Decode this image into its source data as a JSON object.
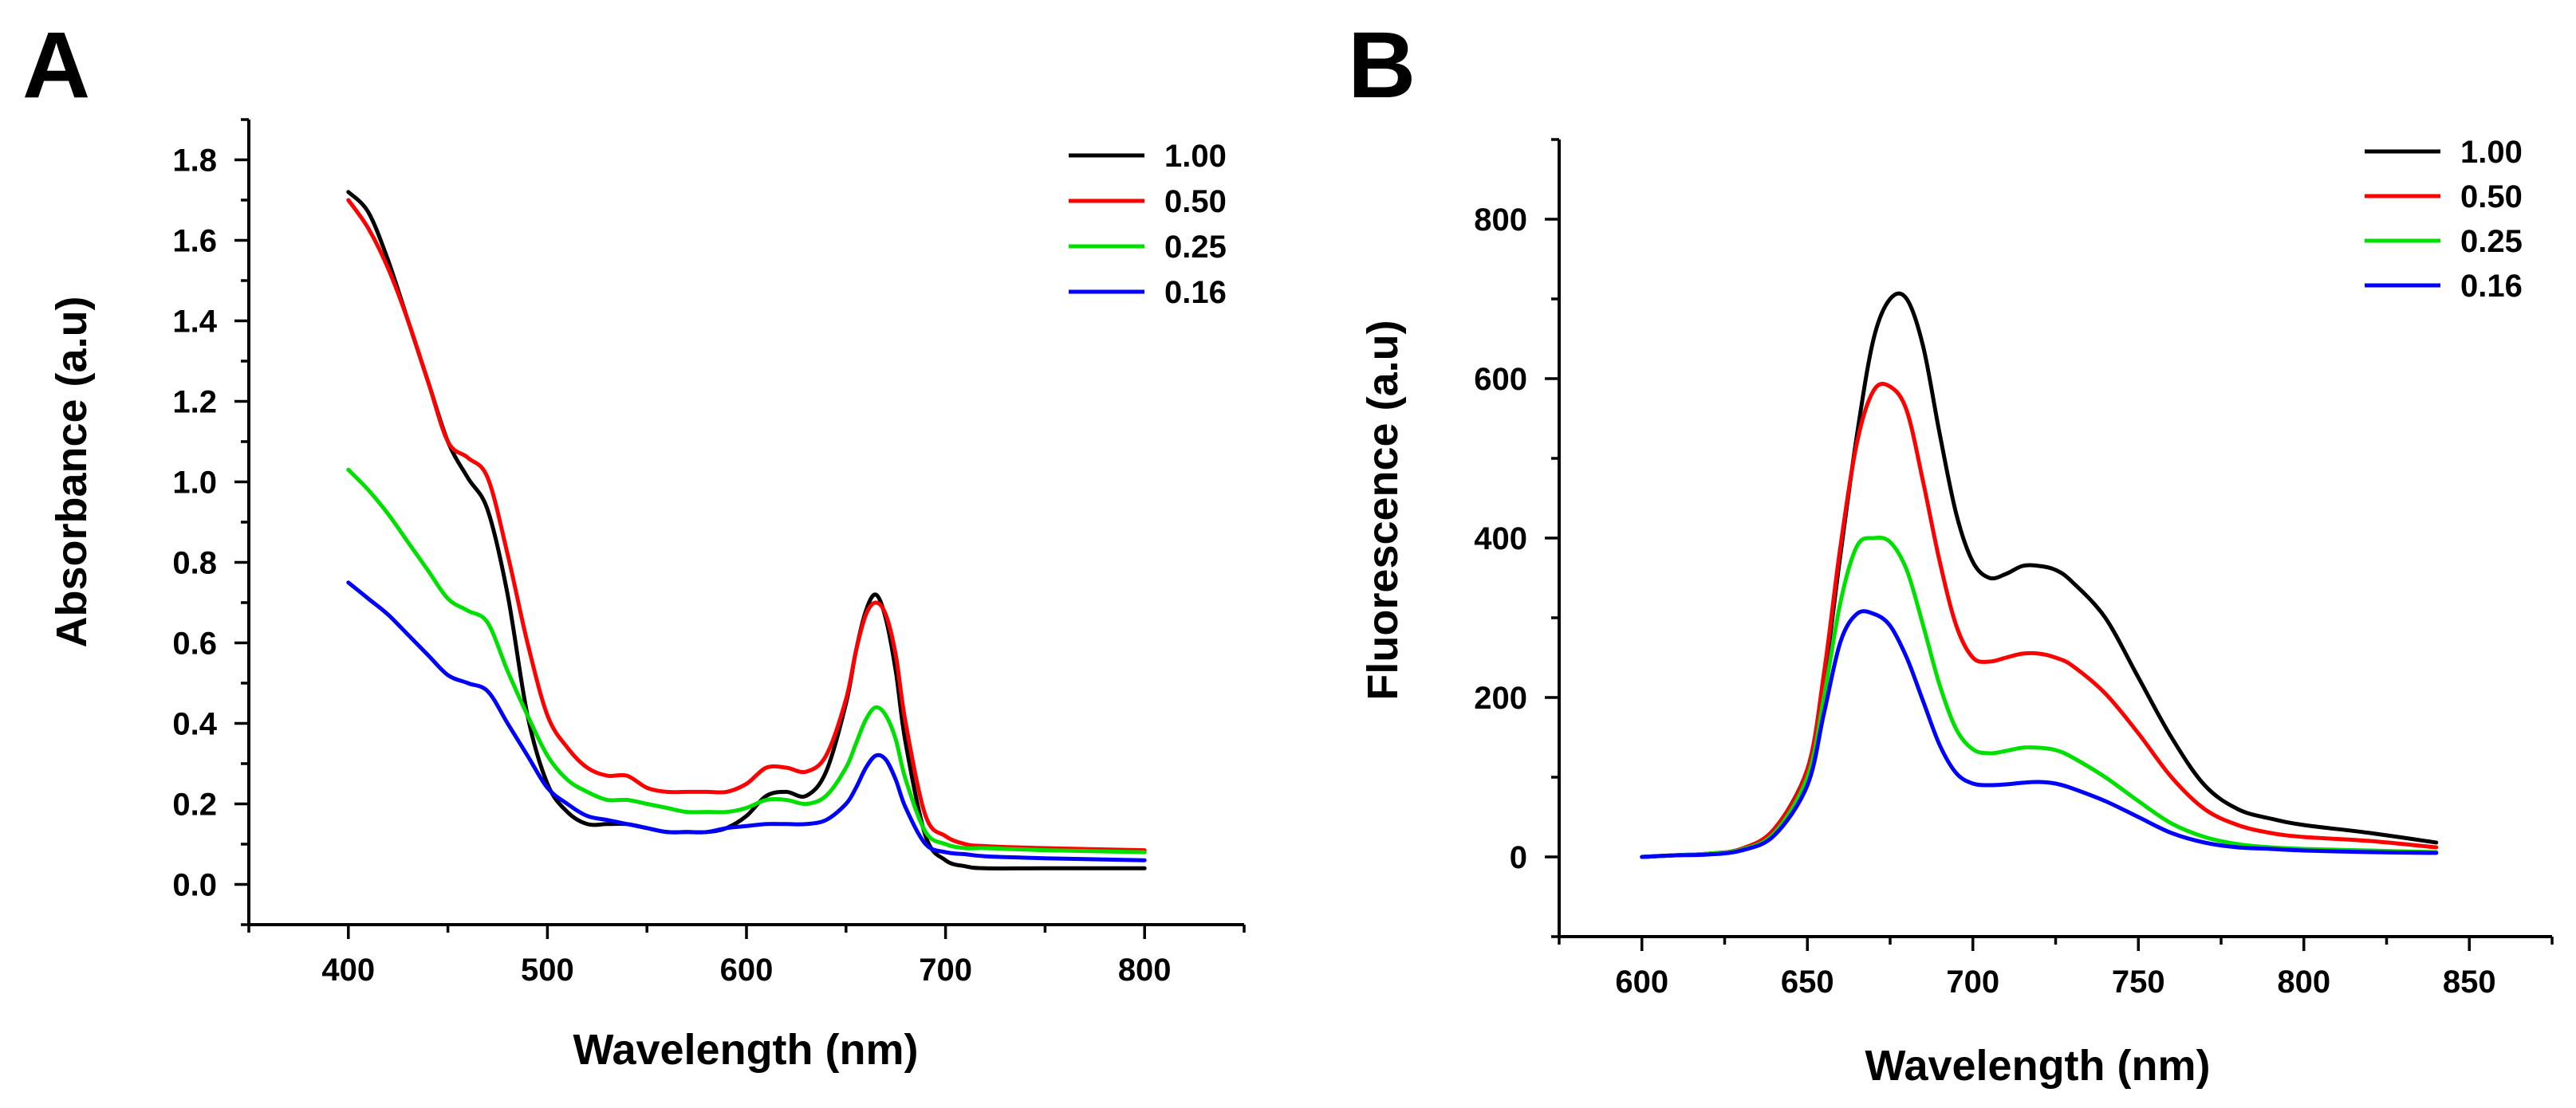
{
  "chart_data": [
    {
      "panel": "A",
      "type": "line",
      "title": "",
      "xlabel": "Wavelength (nm)",
      "ylabel": "Absorbance (a.u)",
      "xlim": [
        350,
        850
      ],
      "ylim": [
        -0.1,
        1.9
      ],
      "xticks": [
        400,
        500,
        600,
        700,
        800
      ],
      "xtick_labels": [
        "400",
        "500",
        "600",
        "700",
        "800"
      ],
      "yticks": [
        0.0,
        0.2,
        0.4,
        0.6,
        0.8,
        1.0,
        1.2,
        1.4,
        1.6,
        1.8
      ],
      "ytick_labels": [
        "0.0",
        "0.2",
        "0.4",
        "0.6",
        "0.8",
        "1.0",
        "1.2",
        "1.4",
        "1.6",
        "1.8"
      ],
      "grid": false,
      "legend": "top-right",
      "x": [
        400,
        410,
        420,
        430,
        440,
        450,
        460,
        470,
        480,
        490,
        500,
        510,
        520,
        530,
        540,
        550,
        560,
        570,
        580,
        590,
        600,
        610,
        620,
        630,
        640,
        650,
        655,
        660,
        665,
        670,
        675,
        680,
        690,
        700,
        710,
        720,
        750,
        800
      ],
      "series": [
        {
          "name": "1.00",
          "color": "#000000",
          "values": [
            1.72,
            1.67,
            1.55,
            1.4,
            1.25,
            1.1,
            1.01,
            0.93,
            0.72,
            0.42,
            0.25,
            0.18,
            0.15,
            0.15,
            0.15,
            0.14,
            0.13,
            0.13,
            0.13,
            0.14,
            0.17,
            0.22,
            0.23,
            0.22,
            0.28,
            0.45,
            0.58,
            0.68,
            0.72,
            0.66,
            0.53,
            0.35,
            0.12,
            0.06,
            0.045,
            0.04,
            0.04,
            0.04
          ]
        },
        {
          "name": "0.50",
          "color": "#ff0000",
          "values": [
            1.7,
            1.63,
            1.53,
            1.4,
            1.25,
            1.1,
            1.06,
            1.01,
            0.82,
            0.6,
            0.42,
            0.34,
            0.29,
            0.27,
            0.27,
            0.24,
            0.23,
            0.23,
            0.23,
            0.23,
            0.25,
            0.29,
            0.29,
            0.28,
            0.32,
            0.46,
            0.58,
            0.67,
            0.7,
            0.67,
            0.57,
            0.4,
            0.17,
            0.12,
            0.1,
            0.095,
            0.09,
            0.085
          ]
        },
        {
          "name": "0.25",
          "color": "#00e000",
          "values": [
            1.03,
            0.98,
            0.92,
            0.85,
            0.78,
            0.71,
            0.68,
            0.65,
            0.53,
            0.42,
            0.32,
            0.26,
            0.23,
            0.21,
            0.21,
            0.2,
            0.19,
            0.18,
            0.18,
            0.18,
            0.19,
            0.21,
            0.21,
            0.2,
            0.22,
            0.29,
            0.35,
            0.41,
            0.44,
            0.42,
            0.36,
            0.26,
            0.13,
            0.1,
            0.09,
            0.09,
            0.085,
            0.08
          ]
        },
        {
          "name": "0.16",
          "color": "#0000ff",
          "values": [
            0.75,
            0.71,
            0.67,
            0.62,
            0.57,
            0.52,
            0.5,
            0.48,
            0.4,
            0.32,
            0.24,
            0.2,
            0.17,
            0.16,
            0.15,
            0.14,
            0.13,
            0.13,
            0.13,
            0.14,
            0.145,
            0.15,
            0.15,
            0.15,
            0.16,
            0.2,
            0.24,
            0.29,
            0.32,
            0.31,
            0.26,
            0.19,
            0.1,
            0.08,
            0.075,
            0.07,
            0.065,
            0.06
          ]
        }
      ]
    },
    {
      "panel": "B",
      "type": "line",
      "title": "",
      "xlabel": "Wavelength (nm)",
      "ylabel": "Fluorescence (a.u)",
      "xlim": [
        575,
        875
      ],
      "ylim": [
        -100,
        900
      ],
      "xticks": [
        600,
        650,
        700,
        750,
        800,
        850
      ],
      "xtick_labels": [
        "600",
        "650",
        "700",
        "750",
        "800",
        "850"
      ],
      "yticks": [
        0,
        200,
        400,
        600,
        800
      ],
      "ytick_labels": [
        "0",
        "200",
        "400",
        "600",
        "800"
      ],
      "grid": false,
      "legend": "top-right",
      "x": [
        600,
        610,
        620,
        630,
        640,
        650,
        655,
        660,
        665,
        670,
        675,
        680,
        685,
        690,
        695,
        700,
        705,
        710,
        715,
        720,
        725,
        730,
        740,
        750,
        760,
        770,
        780,
        790,
        800,
        820,
        840
      ],
      "series": [
        {
          "name": "1.00",
          "color": "#000000",
          "values": [
            0,
            2,
            4,
            10,
            35,
            110,
            220,
            380,
            530,
            650,
            700,
            700,
            640,
            530,
            430,
            370,
            350,
            355,
            365,
            365,
            360,
            345,
            300,
            225,
            150,
            90,
            60,
            48,
            40,
            30,
            18
          ]
        },
        {
          "name": "0.50",
          "color": "#ff0000",
          "values": [
            0,
            2,
            4,
            10,
            35,
            110,
            230,
            390,
            520,
            585,
            590,
            560,
            470,
            370,
            290,
            250,
            245,
            250,
            255,
            255,
            250,
            240,
            205,
            155,
            100,
            60,
            40,
            30,
            25,
            20,
            12
          ]
        },
        {
          "name": "0.25",
          "color": "#00e000",
          "values": [
            0,
            2,
            4,
            9,
            30,
            100,
            200,
            320,
            390,
            400,
            395,
            360,
            290,
            215,
            160,
            135,
            130,
            133,
            137,
            137,
            134,
            125,
            100,
            70,
            42,
            25,
            16,
            12,
            10,
            8,
            6
          ]
        },
        {
          "name": "0.16",
          "color": "#0000ff",
          "values": [
            0,
            2,
            3,
            8,
            27,
            90,
            180,
            270,
            305,
            305,
            290,
            250,
            195,
            140,
            105,
            92,
            90,
            91,
            93,
            94,
            92,
            86,
            70,
            50,
            30,
            18,
            12,
            10,
            8,
            6,
            5
          ]
        }
      ]
    }
  ]
}
